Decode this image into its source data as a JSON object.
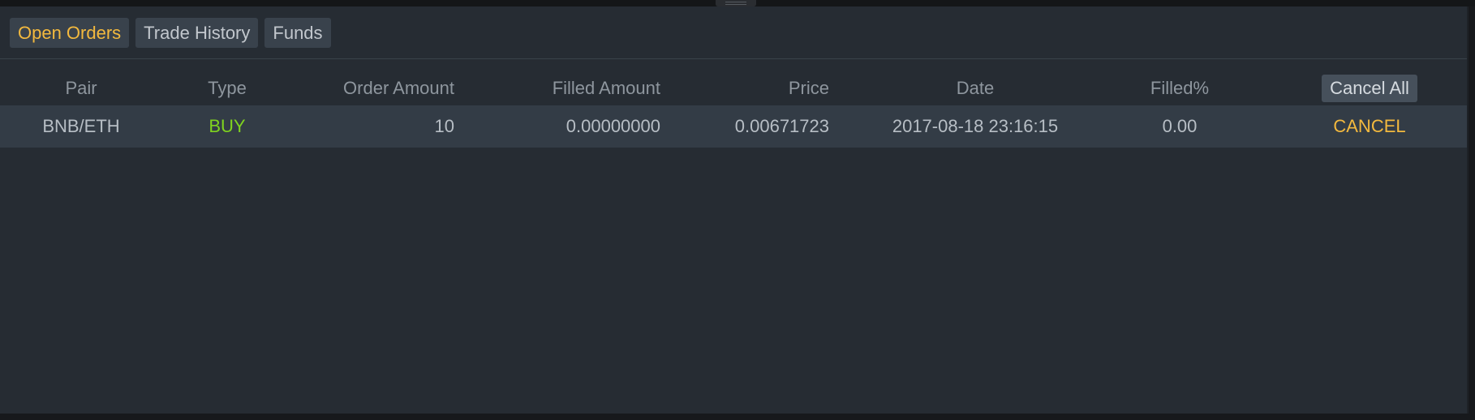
{
  "tabs": [
    {
      "label": "Open Orders",
      "active": true
    },
    {
      "label": "Trade History",
      "active": false
    },
    {
      "label": "Funds",
      "active": false
    }
  ],
  "table": {
    "headers": {
      "pair": "Pair",
      "type": "Type",
      "order_amount": "Order Amount",
      "filled_amount": "Filled Amount",
      "price": "Price",
      "date": "Date",
      "filled_pct": "Filled%"
    },
    "cancel_all_label": "Cancel All",
    "rows": [
      {
        "pair": "BNB/ETH",
        "type": "BUY",
        "order_amount": "10",
        "filled_amount": "0.00000000",
        "price": "0.00671723",
        "date": "2017-08-18 23:16:15",
        "filled_pct": "0.00",
        "action": "CANCEL"
      }
    ]
  },
  "colors": {
    "accent": "#f3b93e",
    "buy": "#7fd31f",
    "panel_bg": "#262c33",
    "row_bg": "#333c46"
  }
}
